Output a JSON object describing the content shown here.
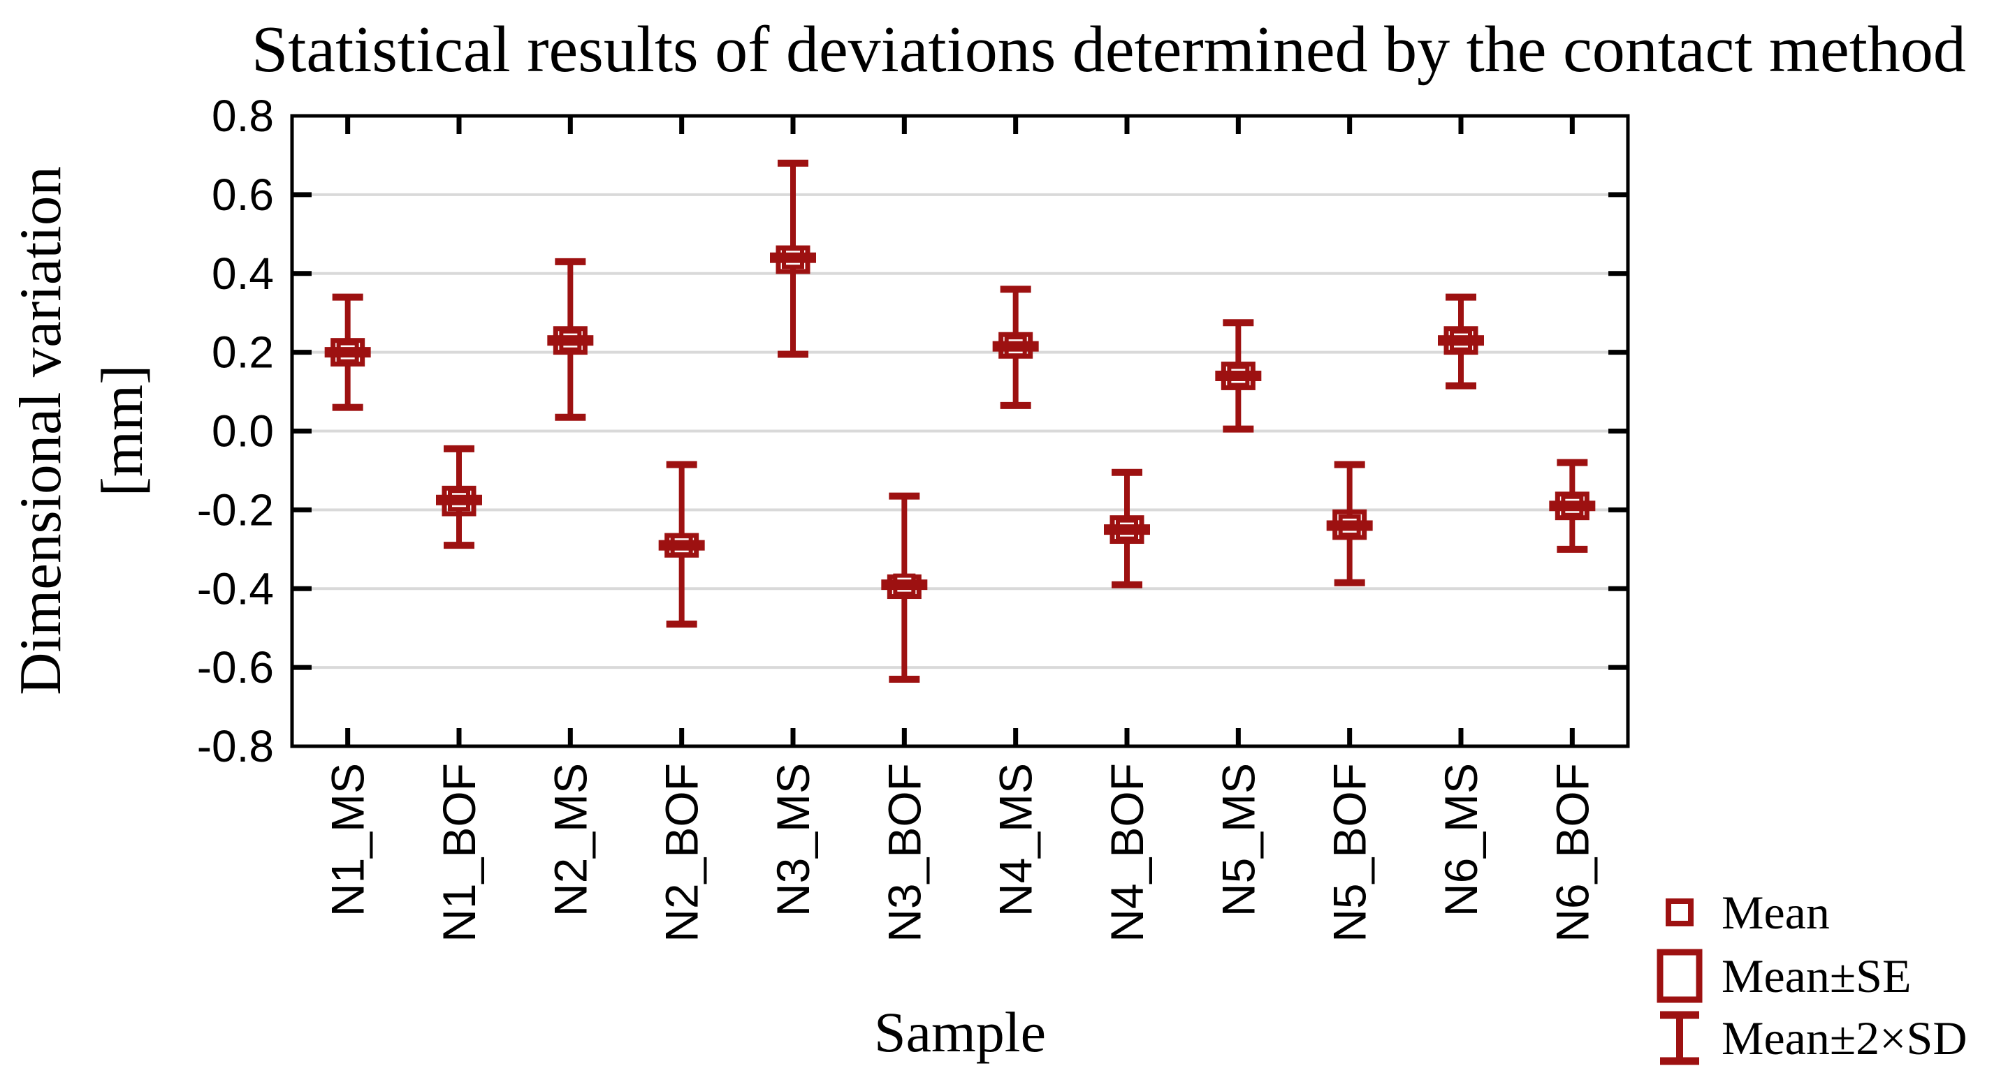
{
  "title": "Statistical results of deviations determined by the contact method",
  "axes": {
    "y_label_line1": "Dimensional variation",
    "y_label_line2": "[mm]",
    "x_label": "Sample",
    "y_ticks": [
      "0.8",
      "0.6",
      "0.4",
      "0.2",
      "0.0",
      "-0.2",
      "-0.4",
      "-0.6",
      "-0.8"
    ]
  },
  "legend": {
    "items": [
      {
        "icon": "mean-square",
        "label": "Mean"
      },
      {
        "icon": "se-box",
        "label": "Mean±SE"
      },
      {
        "icon": "sd-whisker",
        "label": "Mean±2×SD"
      }
    ]
  },
  "colors": {
    "marker": "#9d1111",
    "grid": "#d9d9d9",
    "axis": "#000000",
    "background": "#ffffff"
  },
  "chart_data": {
    "type": "error-bar summary plot (mean point, mean±SE box, mean±2×SD whiskers)",
    "title": "Statistical results of deviations determined by the contact method",
    "xlabel": "Sample",
    "ylabel": "Dimensional variation [mm]",
    "ylim": [
      -0.8,
      0.8
    ],
    "y_tick_step": 0.2,
    "grid": "horizontal gridlines at every 0.2, light gray",
    "legend_position": "outside, bottom-right",
    "categories": [
      "N1_MS",
      "N1_BOF",
      "N2_MS",
      "N2_BOF",
      "N3_MS",
      "N3_BOF",
      "N4_MS",
      "N4_BOF",
      "N5_MS",
      "N5_BOF",
      "N6_MS",
      "N6_BOF"
    ],
    "samples": [
      {
        "name": "N1_MS",
        "mean": 0.2,
        "se_low": 0.17,
        "se_high": 0.23,
        "sd2_low": 0.06,
        "sd2_high": 0.34
      },
      {
        "name": "N1_BOF",
        "mean": -0.175,
        "se_low": -0.21,
        "se_high": -0.145,
        "sd2_low": -0.29,
        "sd2_high": -0.045
      },
      {
        "name": "N2_MS",
        "mean": 0.23,
        "se_low": 0.2,
        "se_high": 0.26,
        "sd2_low": 0.035,
        "sd2_high": 0.43
      },
      {
        "name": "N2_BOF",
        "mean": -0.29,
        "se_low": -0.315,
        "se_high": -0.265,
        "sd2_low": -0.49,
        "sd2_high": -0.085
      },
      {
        "name": "N3_MS",
        "mean": 0.44,
        "se_low": 0.405,
        "se_high": 0.465,
        "sd2_low": 0.195,
        "sd2_high": 0.68
      },
      {
        "name": "N3_BOF",
        "mean": -0.39,
        "se_low": -0.42,
        "se_high": -0.37,
        "sd2_low": -0.63,
        "sd2_high": -0.165
      },
      {
        "name": "N4_MS",
        "mean": 0.215,
        "se_low": 0.19,
        "se_high": 0.245,
        "sd2_low": 0.065,
        "sd2_high": 0.36
      },
      {
        "name": "N4_BOF",
        "mean": -0.25,
        "se_low": -0.28,
        "se_high": -0.22,
        "sd2_low": -0.39,
        "sd2_high": -0.105
      },
      {
        "name": "N5_MS",
        "mean": 0.14,
        "se_low": 0.11,
        "se_high": 0.17,
        "sd2_low": 0.005,
        "sd2_high": 0.275
      },
      {
        "name": "N5_BOF",
        "mean": -0.24,
        "se_low": -0.27,
        "se_high": -0.205,
        "sd2_low": -0.385,
        "sd2_high": -0.085
      },
      {
        "name": "N6_MS",
        "mean": 0.23,
        "se_low": 0.2,
        "se_high": 0.26,
        "sd2_low": 0.115,
        "sd2_high": 0.34
      },
      {
        "name": "N6_BOF",
        "mean": -0.19,
        "se_low": -0.22,
        "se_high": -0.16,
        "sd2_low": -0.3,
        "sd2_high": -0.08
      }
    ],
    "series": [
      {
        "name": "Mean",
        "values": [
          0.2,
          -0.175,
          0.23,
          -0.29,
          0.44,
          -0.39,
          0.215,
          -0.25,
          0.14,
          -0.24,
          0.23,
          -0.19
        ]
      },
      {
        "name": "Mean-SE",
        "values": [
          0.17,
          -0.21,
          0.2,
          -0.315,
          0.405,
          -0.42,
          0.19,
          -0.28,
          0.11,
          -0.27,
          0.2,
          -0.22
        ]
      },
      {
        "name": "Mean+SE",
        "values": [
          0.23,
          -0.145,
          0.26,
          -0.265,
          0.465,
          -0.37,
          0.245,
          -0.22,
          0.17,
          -0.205,
          0.26,
          -0.16
        ]
      },
      {
        "name": "Mean-2SD",
        "values": [
          0.06,
          -0.29,
          0.035,
          -0.49,
          0.195,
          -0.63,
          0.065,
          -0.39,
          0.005,
          -0.385,
          0.115,
          -0.3
        ]
      },
      {
        "name": "Mean+2SD",
        "values": [
          0.34,
          -0.045,
          0.43,
          -0.085,
          0.68,
          -0.165,
          0.36,
          -0.105,
          0.275,
          -0.085,
          0.34,
          -0.08
        ]
      }
    ]
  }
}
